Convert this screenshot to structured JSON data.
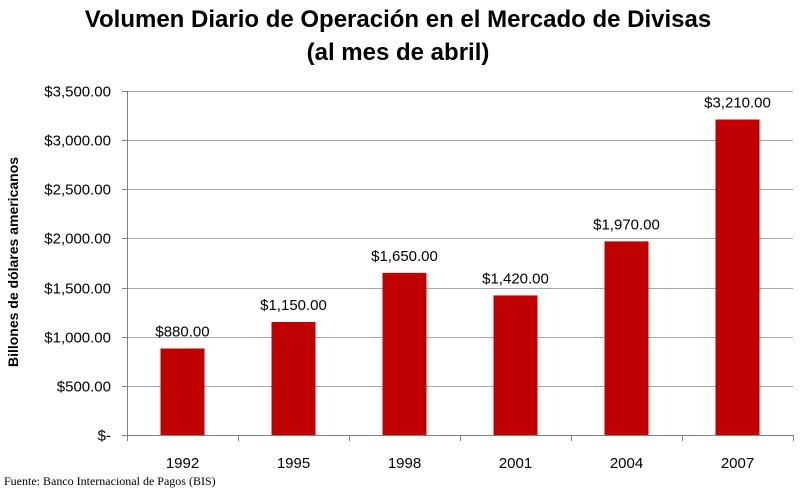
{
  "chart_data": {
    "type": "bar",
    "title_lines": [
      "Volumen Diario de Operación en el Mercado de Divisas",
      "(al mes de abril)"
    ],
    "ylabel": "Billones de dólares americanos",
    "xlabel": "",
    "categories": [
      "1992",
      "1995",
      "1998",
      "2001",
      "2004",
      "2007"
    ],
    "values": [
      880,
      1150,
      1650,
      1420,
      1970,
      3210
    ],
    "data_labels": [
      "$880.00",
      "$1,150.00",
      "$1,650.00",
      "$1,420.00",
      "$1,970.00",
      "$3,210.00"
    ],
    "ylim": [
      0,
      3500
    ],
    "yticks": [
      0,
      500,
      1000,
      1500,
      2000,
      2500,
      3000,
      3500
    ],
    "ytick_labels": [
      "$-",
      "$500.00",
      "$1,000.00",
      "$1,500.00",
      "$2,000.00",
      "$2,500.00",
      "$3,000.00",
      "$3,500.00"
    ],
    "grid": true,
    "bar_color": "#C00000",
    "grid_color": "#A6A6A6",
    "axis_color": "#808080"
  },
  "source_note": "Fuente: Banco Internacional de Pagos (BIS)"
}
